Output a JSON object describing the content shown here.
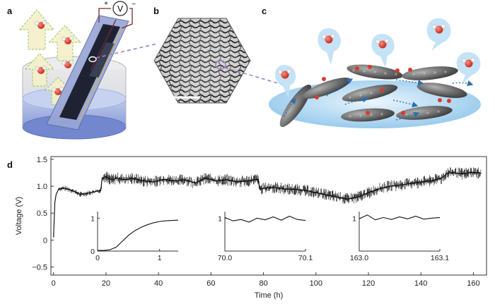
{
  "panel_labels": {
    "a": "a",
    "b": "b",
    "c": "c",
    "d": "d"
  },
  "panel_a": {
    "voltmeter_symbol": "V",
    "plus_sign": "+",
    "minus_sign": "−"
  },
  "colors": {
    "oxygen": "#d83a2e",
    "hydrogen": "#f2f2f2",
    "carbon": "#6a6a6a",
    "water_bubble": "#bfe0f5",
    "sheet": "#8fc3e8",
    "wire": "#7a2a2a",
    "dashed_link": "#a57fc4",
    "flow_arrow": "#2c6fb3"
  },
  "chart_data": {
    "type": "line",
    "xlabel": "Time (h)",
    "ylabel": "Voltage (V)",
    "xlim": [
      -1,
      165
    ],
    "ylim": [
      -0.65,
      1.55
    ],
    "x_ticks": [
      "0",
      "20",
      "40",
      "60",
      "80",
      "100",
      "120",
      "140",
      "160"
    ],
    "y_ticks": [
      "−0.5",
      "0",
      "0.5",
      "1.0",
      "1.5"
    ],
    "series": [
      {
        "name": "Voltage",
        "x": [
          0,
          0.5,
          1,
          1.5,
          2,
          4,
          6,
          8,
          10,
          12,
          14,
          16,
          18,
          18.5,
          20,
          22,
          24,
          26,
          28,
          30,
          34,
          38,
          42,
          46,
          50,
          54,
          58,
          62,
          66,
          70,
          74,
          78,
          78.5,
          80,
          84,
          88,
          92,
          96,
          100,
          104,
          108,
          112,
          116,
          120,
          124,
          128,
          132,
          136,
          140,
          144,
          148,
          150,
          152,
          156,
          160,
          163
        ],
        "values": [
          0.05,
          0.7,
          0.85,
          0.9,
          0.95,
          0.96,
          0.94,
          0.9,
          0.85,
          0.86,
          0.88,
          0.9,
          0.92,
          1.15,
          1.18,
          1.12,
          1.15,
          1.13,
          1.12,
          1.15,
          1.1,
          1.08,
          1.13,
          1.1,
          1.12,
          1.06,
          1.15,
          1.1,
          1.12,
          1.08,
          1.1,
          1.13,
          0.95,
          0.96,
          0.98,
          0.95,
          0.94,
          0.92,
          0.88,
          0.84,
          0.8,
          0.76,
          0.8,
          0.88,
          0.95,
          1.0,
          1.02,
          1.05,
          1.08,
          1.1,
          1.15,
          1.24,
          1.25,
          1.23,
          1.26,
          1.24
        ]
      }
    ],
    "insets": [
      {
        "x_ticks": [
          "0",
          "1"
        ],
        "y_ticks": [
          "0",
          "1"
        ],
        "xlim": [
          0,
          1.3
        ],
        "ylim": [
          0,
          1.2
        ],
        "x": [
          0,
          0.1,
          0.2,
          0.3,
          0.4,
          0.5,
          0.6,
          0.7,
          0.8,
          0.9,
          1.0,
          1.1,
          1.2,
          1.3
        ],
        "values": [
          0.02,
          0.02,
          0.04,
          0.12,
          0.3,
          0.48,
          0.62,
          0.72,
          0.8,
          0.86,
          0.9,
          0.92,
          0.93,
          0.94
        ]
      },
      {
        "x_ticks": [
          "70.0",
          "70.1"
        ],
        "y_ticks": [
          "1"
        ],
        "xlim": [
          70.0,
          70.1
        ],
        "ylim": [
          0,
          1.2
        ],
        "x": [
          70.0,
          70.01,
          70.02,
          70.03,
          70.04,
          70.05,
          70.06,
          70.07,
          70.08,
          70.09,
          70.1
        ],
        "values": [
          1.02,
          0.92,
          0.96,
          0.88,
          1.0,
          0.95,
          1.04,
          0.94,
          1.06,
          0.96,
          0.93
        ]
      },
      {
        "x_ticks": [
          "163.0",
          "163.1"
        ],
        "y_ticks": [
          "1"
        ],
        "xlim": [
          163.0,
          163.1
        ],
        "ylim": [
          0,
          1.2
        ],
        "x": [
          163.0,
          163.01,
          163.02,
          163.03,
          163.04,
          163.05,
          163.06,
          163.07,
          163.08,
          163.09,
          163.1
        ],
        "values": [
          0.98,
          1.1,
          0.95,
          1.02,
          0.96,
          1.04,
          0.98,
          1.06,
          0.97,
          1.0,
          1.02
        ]
      }
    ]
  }
}
